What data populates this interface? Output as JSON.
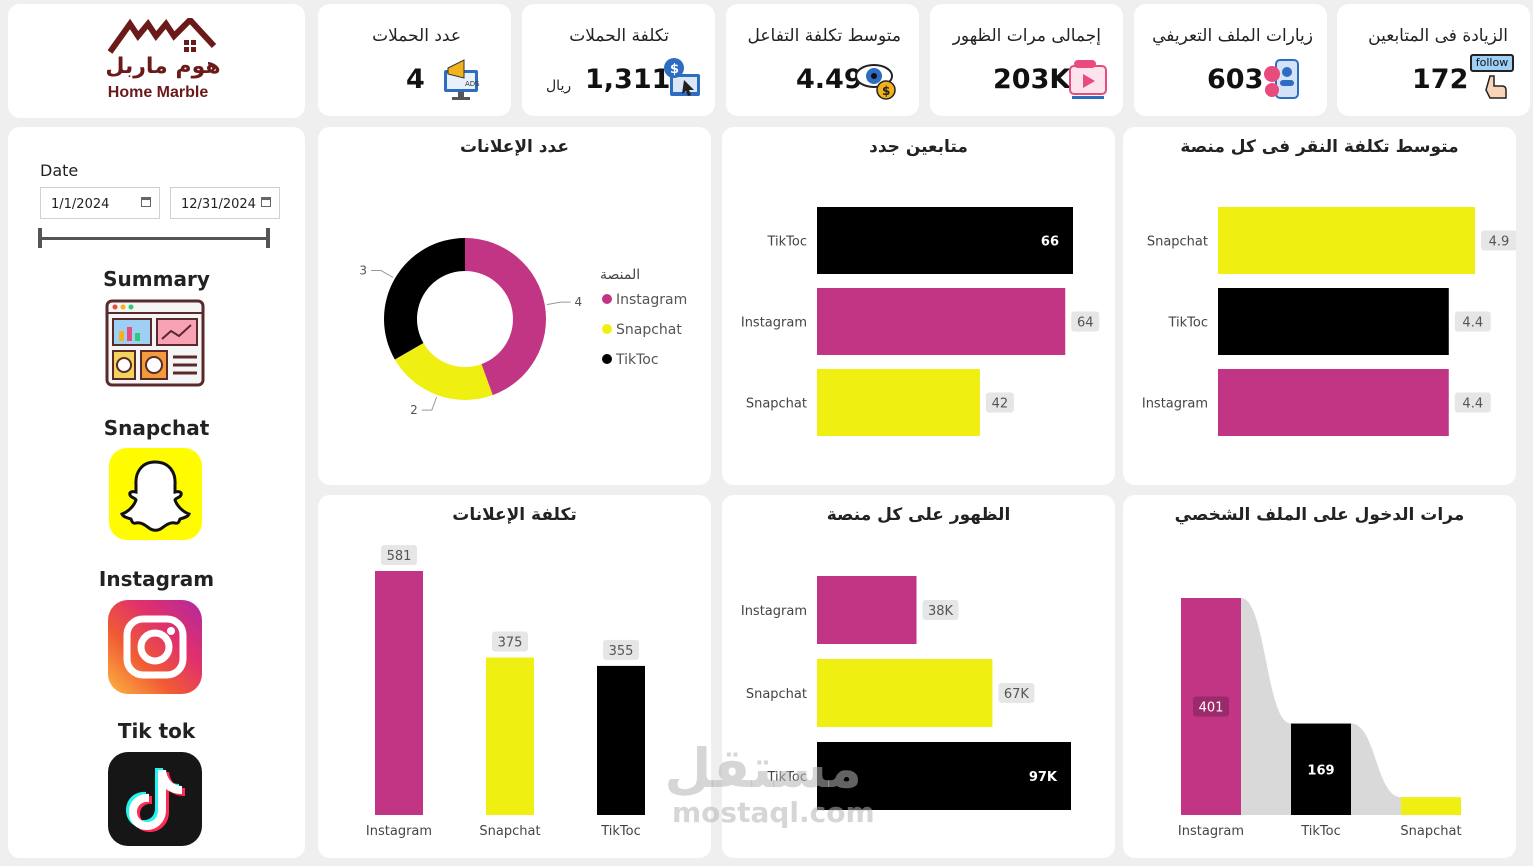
{
  "logo": {
    "arabic": "هوم ماربل",
    "english": "Home Marble"
  },
  "kpis": [
    {
      "title": "عدد الحملات",
      "value": "4",
      "unit": "",
      "icon": "ads-megaphone-icon"
    },
    {
      "title": "تكلفة الحملات",
      "value": "1,311",
      "unit": "ريال",
      "icon": "dollar-click-icon"
    },
    {
      "title": "متوسط تكلفة التفاعل",
      "value": "4.49",
      "unit": "",
      "icon": "eye-dollar-icon"
    },
    {
      "title": "إجمالى مرات الظهور",
      "value": "203K",
      "unit": "",
      "icon": "video-views-icon"
    },
    {
      "title": "زيارات الملف التعريفي",
      "value": "603",
      "unit": "",
      "icon": "profile-visit-icon"
    },
    {
      "title": "الزيادة فى المتابعين",
      "value": "172",
      "unit": "",
      "icon": "follow-icon",
      "badge": "follow"
    }
  ],
  "filter": {
    "label": "Date",
    "start": "1/1/2024",
    "end": "12/31/2024"
  },
  "nav": [
    {
      "label": "Summary",
      "icon": "summary-dashboard-icon"
    },
    {
      "label": "Snapchat",
      "icon": "snapchat-icon"
    },
    {
      "label": "Instagram",
      "icon": "instagram-icon"
    },
    {
      "label": "Tik tok",
      "icon": "tiktok-icon"
    }
  ],
  "colors": {
    "Instagram": "#c13584",
    "Snapchat": "#f0ef12",
    "TikToc": "#000000",
    "label_bg": "#e6e6e6"
  },
  "charts": {
    "ads_count": {
      "title": "عدد الإعلانات",
      "legend_title": "المنصة",
      "chart_data": {
        "type": "pie",
        "categories": [
          "Instagram",
          "Snapchat",
          "TikToc"
        ],
        "values": [
          4,
          2,
          3
        ],
        "labels": [
          "4",
          "2",
          "3"
        ]
      }
    },
    "new_followers": {
      "title": "متابعين جدد",
      "chart_data": {
        "type": "bar",
        "orientation": "horizontal",
        "categories": [
          "TikToc",
          "Instagram",
          "Snapchat"
        ],
        "values": [
          66,
          64,
          42
        ],
        "labels": [
          "66",
          "64",
          "42"
        ]
      }
    },
    "cpc": {
      "title": "متوسط تكلفة النقر فى كل منصة",
      "chart_data": {
        "type": "bar",
        "orientation": "horizontal",
        "categories": [
          "Snapchat",
          "TikToc",
          "Instagram"
        ],
        "values": [
          4.9,
          4.4,
          4.4
        ],
        "labels": [
          "4.9",
          "4.4",
          "4.4"
        ]
      }
    },
    "ads_cost": {
      "title": "تكلفة الإعلانات",
      "chart_data": {
        "type": "bar",
        "orientation": "vertical",
        "categories": [
          "Instagram",
          "Snapchat",
          "TikToc"
        ],
        "values": [
          581,
          375,
          355
        ],
        "labels": [
          "581",
          "375",
          "355"
        ]
      }
    },
    "impressions": {
      "title": "الظهور على كل منصة",
      "chart_data": {
        "type": "bar",
        "orientation": "horizontal",
        "categories": [
          "Instagram",
          "Snapchat",
          "TikToc"
        ],
        "values": [
          38000,
          67000,
          97000
        ],
        "labels": [
          "38K",
          "67K",
          "97K"
        ]
      }
    },
    "profile_visits": {
      "title": "مرات الدخول على الملف الشخصي",
      "chart_data": {
        "type": "bar",
        "orientation": "vertical",
        "style": "ribbon",
        "categories": [
          "Instagram",
          "TikToc",
          "Snapchat"
        ],
        "values": [
          401,
          169,
          33
        ],
        "labels": [
          "401",
          "169",
          ""
        ]
      }
    }
  },
  "watermark": {
    "arabic": "مستقل",
    "latin": "mostaql.com"
  }
}
